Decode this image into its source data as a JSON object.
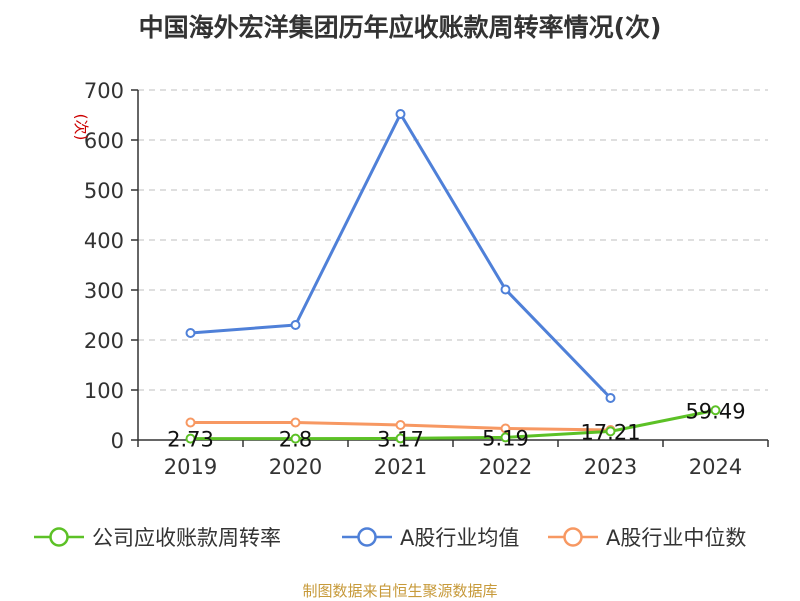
{
  "title": "中国海外宏洋集团历年应收账款周转率情况(次)",
  "source_note": "制图数据来自恒生聚源数据库",
  "chart_data": {
    "type": "line",
    "categories": [
      "2019",
      "2020",
      "2021",
      "2022",
      "2023",
      "2024"
    ],
    "ylabel": "(次)",
    "ylim": [
      0,
      700
    ],
    "yticks": [
      0,
      100,
      200,
      300,
      400,
      500,
      600,
      700
    ],
    "grid": true,
    "legend_position": "bottom",
    "series": [
      {
        "name": "公司应收账款周转率",
        "color": "#5cc126",
        "values": [
          2.73,
          2.8,
          3.17,
          5.19,
          17.21,
          59.49
        ],
        "labels": [
          "2.73",
          "2.8",
          "3.17",
          "5.19",
          "17.21",
          "59.49"
        ]
      },
      {
        "name": "A股行业均值",
        "color": "#4f80d8",
        "values": [
          214,
          230,
          652,
          301,
          84,
          null
        ]
      },
      {
        "name": "A股行业中位数",
        "color": "#f79862",
        "values": [
          35,
          35,
          30,
          23,
          20,
          null
        ]
      }
    ]
  }
}
